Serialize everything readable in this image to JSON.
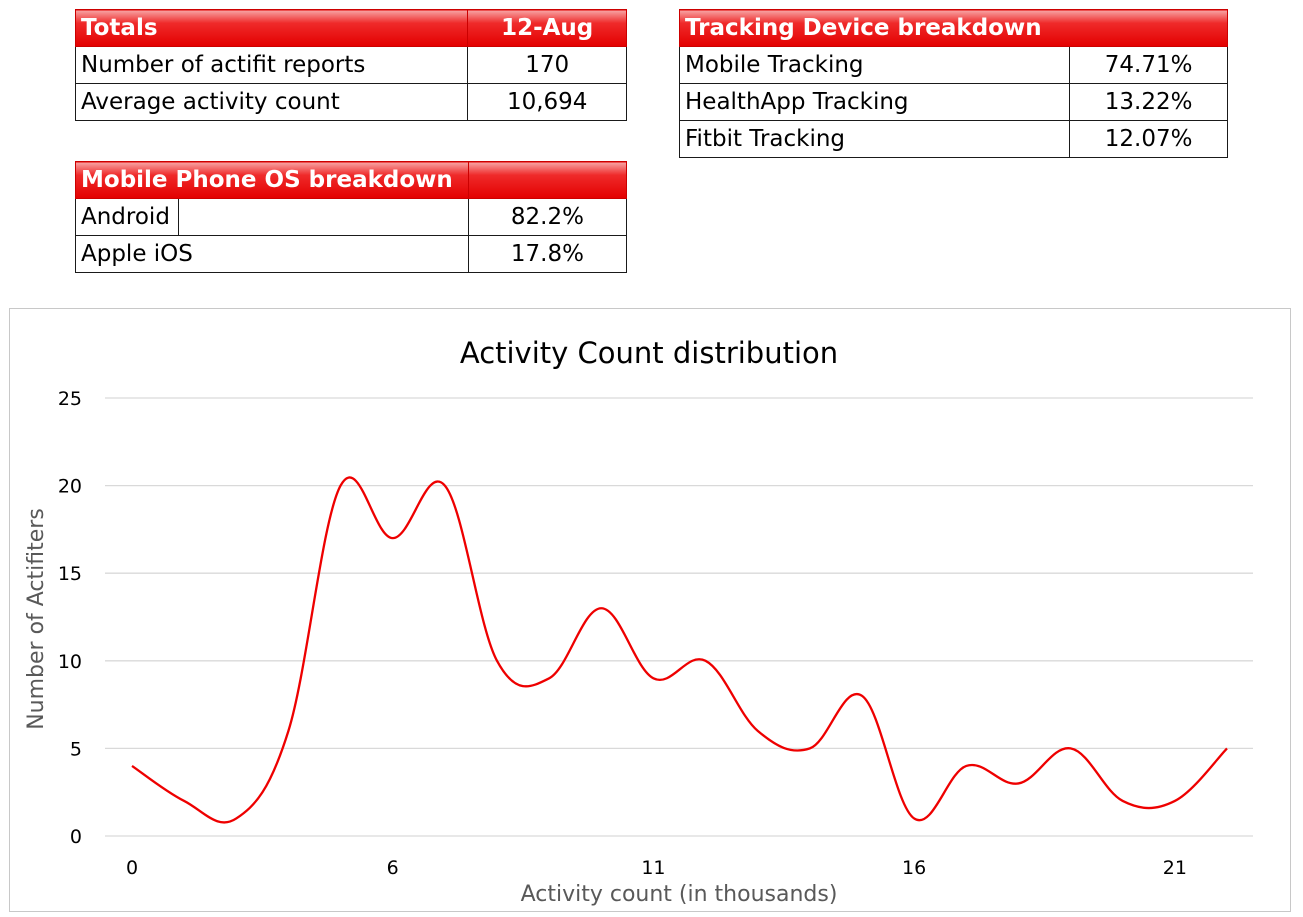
{
  "totals": {
    "title": "Totals",
    "date": "12-Aug",
    "rows": [
      {
        "label": "Number of actifit reports",
        "value": "170"
      },
      {
        "label": "Average activity count",
        "value": "10,694"
      }
    ]
  },
  "tracking": {
    "title": "Tracking Device breakdown",
    "rows": [
      {
        "label": "Mobile Tracking",
        "value": "74.71%"
      },
      {
        "label": "HealthApp Tracking",
        "value": "13.22%"
      },
      {
        "label": "Fitbit Tracking",
        "value": "12.07%"
      }
    ]
  },
  "os": {
    "title": "Mobile Phone OS breakdown",
    "rows": [
      {
        "label": "Android",
        "value": "82.2%"
      },
      {
        "label": "Apple iOS",
        "value": "17.8%"
      }
    ]
  },
  "colors": {
    "header_red": "#e30000",
    "line_red": "#ee0000",
    "grid": "#d9d9d9",
    "axis_text": "#595959"
  },
  "chart_data": {
    "type": "line",
    "title": "Activity Count distribution",
    "xlabel": "Activity count (in thousands)",
    "ylabel": "Number of Actifiters",
    "x": [
      0,
      1,
      2,
      3,
      4,
      5,
      6,
      7,
      8,
      9,
      10,
      11,
      12,
      13,
      14,
      15,
      16,
      17,
      18,
      19,
      20,
      21
    ],
    "values": [
      4,
      2,
      1,
      6,
      20,
      17,
      20,
      10,
      9,
      13,
      9,
      10,
      6,
      5,
      8,
      1,
      4,
      3,
      5,
      2,
      2,
      5
    ],
    "x_tick_labels": [
      "0",
      "6",
      "11",
      "16",
      "21"
    ],
    "x_tick_positions": [
      0,
      5,
      10,
      15,
      20
    ],
    "xlim": [
      0,
      21
    ],
    "ylim": [
      0,
      25
    ],
    "y_ticks": [
      0,
      5,
      10,
      15,
      20,
      25
    ],
    "smooth": true,
    "grid": "horizontal",
    "legend": "none"
  }
}
